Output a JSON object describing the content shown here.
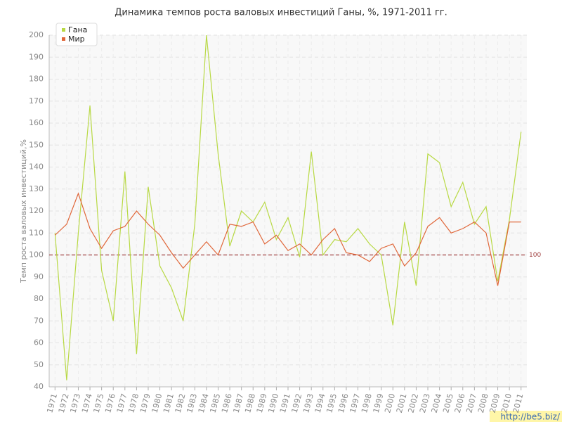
{
  "chart_data": {
    "type": "line",
    "title": "Динамика темпов роста валовых инвестиций Ганы, %, 1971-2011 гг.",
    "y_label": "Темп роста валовых инвестиций,%",
    "x": [
      1971,
      1972,
      1973,
      1974,
      1975,
      1976,
      1977,
      1978,
      1979,
      1980,
      1981,
      1982,
      1983,
      1984,
      1985,
      1986,
      1987,
      1988,
      1989,
      1990,
      1991,
      1992,
      1993,
      1994,
      1995,
      1996,
      1997,
      1998,
      1999,
      2000,
      2001,
      2002,
      2003,
      2004,
      2005,
      2006,
      2007,
      2008,
      2009,
      2010,
      2011
    ],
    "series": [
      {
        "name": "Гана",
        "color": "#b8d944",
        "values": [
          110,
          43,
          110,
          168,
          93,
          70,
          138,
          55,
          131,
          95,
          85,
          70,
          114,
          200,
          146,
          104,
          120,
          115,
          124,
          107,
          117,
          99,
          147,
          100,
          107,
          106,
          112,
          105,
          100,
          68,
          115,
          86,
          146,
          142,
          122,
          133,
          114,
          122,
          88,
          116,
          156
        ]
      },
      {
        "name": "Мир",
        "color": "#e0673a",
        "values": [
          109,
          114,
          128,
          112,
          103,
          111,
          113,
          120,
          114,
          109,
          101,
          94,
          100,
          106,
          100,
          114,
          113,
          115,
          105,
          109,
          102,
          105,
          100,
          107,
          112,
          101,
          100,
          97,
          103,
          105,
          95,
          101,
          113,
          117,
          110,
          112,
          115,
          110,
          86,
          115,
          115
        ]
      }
    ],
    "xlim": [
      1970.5,
      2011.5
    ],
    "xticks": [
      1971,
      1972,
      1973,
      1974,
      1975,
      1976,
      1977,
      1978,
      1979,
      1980,
      1981,
      1982,
      1983,
      1984,
      1985,
      1986,
      1987,
      1988,
      1989,
      1990,
      1991,
      1992,
      1993,
      1994,
      1995,
      1996,
      1997,
      1998,
      1999,
      2000,
      2001,
      2002,
      2003,
      2004,
      2005,
      2006,
      2007,
      2008,
      2009,
      2010,
      2011
    ],
    "ylim": [
      40,
      200
    ],
    "yticks": [
      40,
      50,
      60,
      70,
      80,
      90,
      100,
      110,
      120,
      130,
      140,
      150,
      160,
      170,
      180,
      190,
      200
    ],
    "reference_line": 100,
    "grid": true,
    "legend": "top-left",
    "watermark": "http://be5.biz/"
  }
}
